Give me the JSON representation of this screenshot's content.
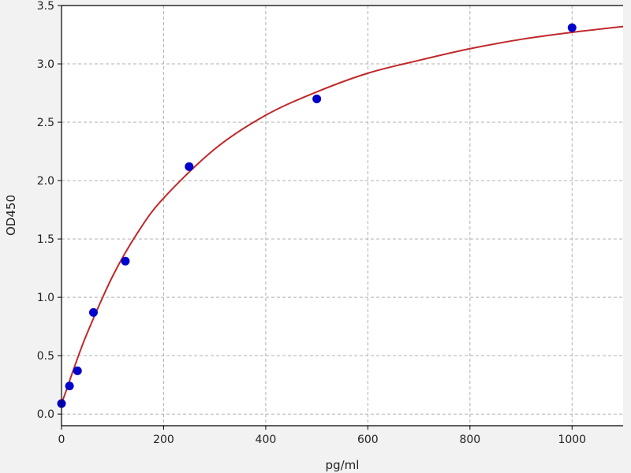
{
  "chart_data": {
    "type": "scatter",
    "title": "",
    "xlabel": "pg/ml",
    "ylabel": "OD450",
    "xlim": [
      0,
      1100
    ],
    "ylim": [
      -0.1,
      3.5
    ],
    "xticks": [
      0,
      200,
      400,
      600,
      800,
      1000
    ],
    "yticks": [
      0.0,
      0.5,
      1.0,
      1.5,
      2.0,
      2.5,
      3.0,
      3.5
    ],
    "xtick_labels": [
      "0",
      "200",
      "400",
      "600",
      "800",
      "1000"
    ],
    "ytick_labels": [
      "0.0",
      "0.5",
      "1.0",
      "1.5",
      "2.0",
      "2.5",
      "3.0",
      "3.5"
    ],
    "grid": true,
    "series": [
      {
        "kind": "points",
        "color": "#0000cc",
        "x": [
          0,
          15.6,
          31.25,
          62.5,
          125,
          250,
          500,
          1000
        ],
        "y": [
          0.09,
          0.24,
          0.37,
          0.87,
          1.31,
          2.12,
          2.7,
          3.31
        ]
      },
      {
        "kind": "fit-line",
        "color": "#c0282a",
        "x": [
          0,
          10,
          25,
          50,
          100,
          150,
          200,
          300,
          400,
          500,
          600,
          700,
          800,
          900,
          1000,
          1100
        ],
        "y": [
          0.09,
          0.21,
          0.4,
          0.69,
          1.18,
          1.56,
          1.85,
          2.27,
          2.56,
          2.76,
          2.92,
          3.03,
          3.13,
          3.21,
          3.27,
          3.32
        ]
      }
    ]
  }
}
